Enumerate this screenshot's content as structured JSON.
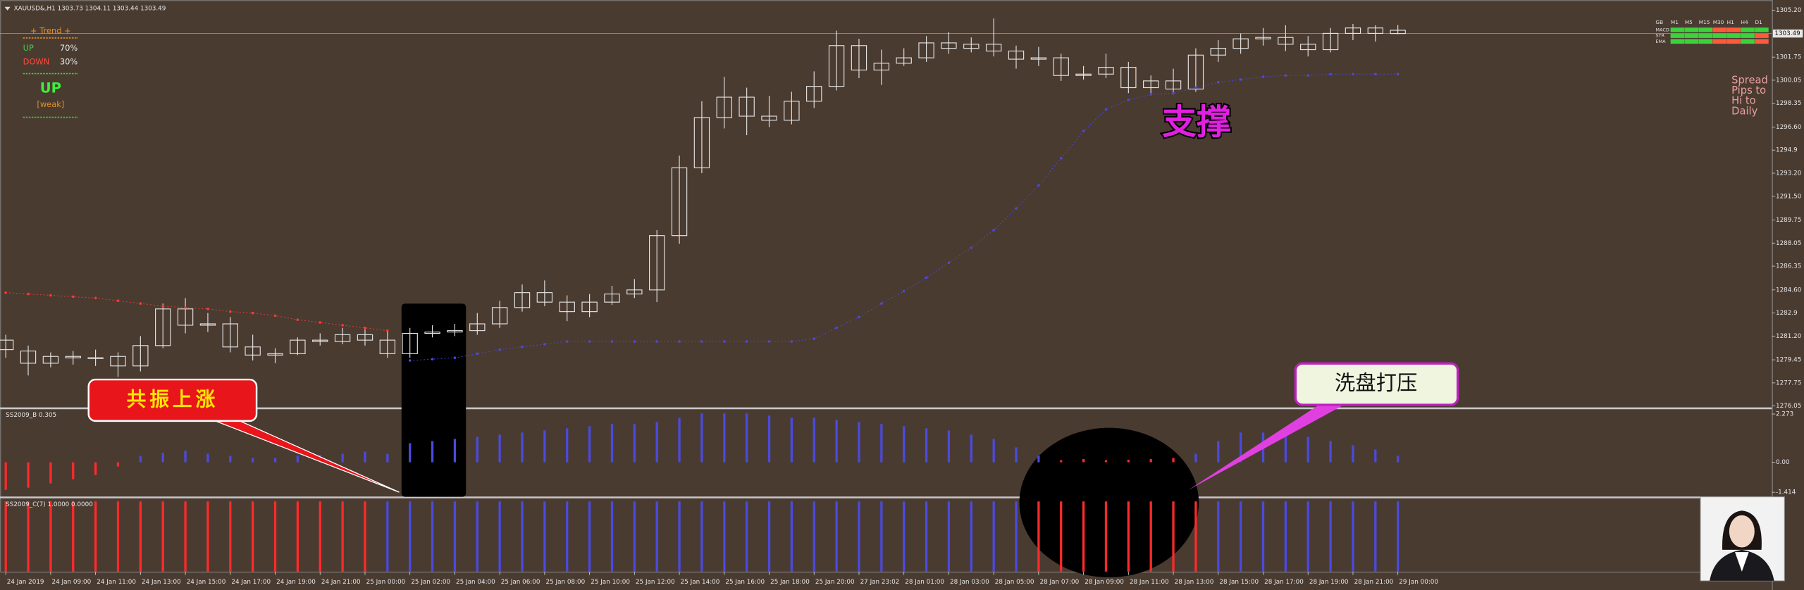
{
  "chart_data": [
    {
      "type": "candlestick",
      "title": "XAUUSD&,H1 1303.73 1304.11 1303.44 1303.49",
      "categories": [
        "24 Jan 2019",
        null,
        "24 Jan 09:00",
        null,
        "24 Jan 11:00",
        null,
        "24 Jan 13:00",
        null,
        "24 Jan 15:00",
        null,
        "24 Jan 17:00",
        null,
        "24 Jan 19:00",
        null,
        "24 Jan 21:00",
        null,
        "25 Jan 00:00",
        null,
        "25 Jan 02:00",
        null,
        "25 Jan 04:00",
        null,
        "25 Jan 06:00",
        null,
        "25 Jan 08:00",
        null,
        "25 Jan 10:00",
        null,
        "25 Jan 12:00",
        null,
        "25 Jan 14:00",
        null,
        "25 Jan 16:00",
        null,
        "25 Jan 18:00",
        null,
        "25 Jan 20:00",
        null,
        "27 Jan 23:02",
        null,
        "28 Jan 01:00",
        null,
        "28 Jan 03:00",
        null,
        "28 Jan 05:00",
        null,
        "28 Jan 07:00",
        null,
        "28 Jan 09:00",
        null,
        "28 Jan 11:00",
        null,
        "28 Jan 13:00",
        null,
        "28 Jan 15:00",
        null,
        "28 Jan 17:00",
        null,
        "28 Jan 19:00",
        null,
        "28 Jan 21:00",
        null,
        "29 Jan 00:00"
      ],
      "open": [
        1280.9,
        1280.1,
        1279.2,
        1279.7,
        1279.6,
        1279.7,
        1279.0,
        1280.5,
        1283.2,
        1282.0,
        1282.1,
        1280.4,
        1279.8,
        1279.9,
        1280.9,
        1280.8,
        1281.3,
        1280.9,
        1279.9,
        1281.4,
        1281.5,
        1281.6,
        1282.1,
        1283.3,
        1284.4,
        1283.7,
        1283.0,
        1283.7,
        1284.3,
        1284.6,
        1288.6,
        1293.6,
        1297.3,
        1298.8,
        1297.4,
        1297.1,
        1298.5,
        1299.6,
        1302.6,
        1300.8,
        1301.3,
        1301.7,
        1302.8,
        1302.4,
        1302.7,
        1302.2,
        1301.6,
        1301.7,
        1300.4,
        1300.5,
        1301.0,
        1299.5,
        1300.0,
        1299.4,
        1301.9,
        1302.4,
        1303.1,
        1303.2,
        1302.7,
        1302.3,
        1303.5,
        1303.9,
        1303.73
      ],
      "high": [
        1281.3,
        1280.5,
        1280.0,
        1280.1,
        1280.2,
        1280.0,
        1281.2,
        1283.6,
        1284.0,
        1282.9,
        1282.6,
        1281.3,
        1280.3,
        1281.1,
        1281.4,
        1281.8,
        1281.7,
        1281.6,
        1281.8,
        1282.0,
        1282.1,
        1282.9,
        1283.8,
        1285.0,
        1285.3,
        1284.2,
        1284.3,
        1284.9,
        1285.4,
        1289.0,
        1294.5,
        1298.5,
        1300.3,
        1299.5,
        1298.9,
        1299.2,
        1300.7,
        1303.7,
        1303.1,
        1302.3,
        1302.4,
        1303.3,
        1303.6,
        1303.2,
        1304.6,
        1302.6,
        1302.5,
        1302.0,
        1301.1,
        1302.0,
        1301.4,
        1300.4,
        1300.9,
        1302.4,
        1303.0,
        1303.5,
        1303.9,
        1304.1,
        1303.3,
        1303.9,
        1304.2,
        1304.1,
        1304.11
      ],
      "low": [
        1279.6,
        1278.3,
        1278.9,
        1279.1,
        1279.0,
        1278.2,
        1278.6,
        1280.3,
        1281.4,
        1281.5,
        1280.0,
        1279.4,
        1279.2,
        1279.8,
        1280.5,
        1280.6,
        1280.5,
        1279.6,
        1279.6,
        1281.1,
        1281.2,
        1281.3,
        1281.8,
        1283.0,
        1283.4,
        1282.3,
        1282.6,
        1283.5,
        1284.0,
        1283.7,
        1288.0,
        1293.2,
        1296.5,
        1296.0,
        1296.6,
        1296.8,
        1298.0,
        1299.3,
        1300.2,
        1299.7,
        1301.1,
        1301.4,
        1302.0,
        1302.1,
        1301.8,
        1300.9,
        1301.1,
        1300.0,
        1300.1,
        1300.2,
        1299.1,
        1299.1,
        1299.0,
        1299.2,
        1301.4,
        1302.0,
        1302.6,
        1302.2,
        1301.8,
        1302.1,
        1303.0,
        1302.9,
        1303.44
      ],
      "close": [
        1280.2,
        1279.2,
        1279.7,
        1279.6,
        1279.6,
        1279.0,
        1280.5,
        1283.2,
        1282.0,
        1282.1,
        1280.4,
        1279.8,
        1279.9,
        1280.9,
        1280.8,
        1281.3,
        1280.9,
        1279.9,
        1281.4,
        1281.5,
        1281.6,
        1282.1,
        1283.3,
        1284.4,
        1283.7,
        1283.0,
        1283.7,
        1284.3,
        1284.6,
        1288.6,
        1293.6,
        1297.3,
        1298.8,
        1297.4,
        1297.1,
        1298.5,
        1299.6,
        1302.6,
        1300.8,
        1301.3,
        1301.7,
        1302.8,
        1302.4,
        1302.7,
        1302.2,
        1301.6,
        1301.7,
        1300.4,
        1300.5,
        1301.0,
        1299.5,
        1300.0,
        1299.4,
        1301.9,
        1302.4,
        1303.1,
        1303.2,
        1302.7,
        1302.3,
        1303.5,
        1303.9,
        1303.5,
        1303.49
      ],
      "candle_color": "#e4e4e4",
      "series": [
        {
          "color": "#ff3b30",
          "values": [
            1284.4,
            1284.3,
            1284.2,
            1284.1,
            1284.0,
            1283.8,
            1283.6,
            1283.4,
            1283.3,
            1283.2,
            1283.0,
            1282.9,
            1282.7,
            1282.4,
            1282.2,
            1282.0,
            1281.8,
            1281.6,
            null,
            null,
            null,
            null,
            null,
            null,
            null,
            null,
            null,
            null,
            null,
            null,
            null,
            null,
            null,
            null,
            null,
            null,
            null,
            null,
            null,
            null,
            null,
            null,
            null,
            null,
            null,
            null,
            null,
            null,
            null,
            null,
            null,
            null,
            null,
            null,
            null,
            null,
            null,
            null,
            null,
            null,
            null,
            null,
            null
          ]
        },
        {
          "color": "#4a4ae0",
          "values": [
            null,
            null,
            null,
            null,
            null,
            null,
            null,
            null,
            null,
            null,
            null,
            null,
            null,
            null,
            null,
            null,
            null,
            null,
            1279.4,
            1279.5,
            1279.6,
            1279.9,
            1280.2,
            1280.4,
            1280.6,
            1280.8,
            1280.8,
            1280.8,
            1280.8,
            1280.8,
            1280.8,
            1280.8,
            1280.8,
            1280.8,
            1280.8,
            1280.8,
            1281.0,
            1281.8,
            1282.6,
            1283.6,
            1284.5,
            1285.5,
            1286.6,
            1287.7,
            1289.0,
            1290.6,
            1292.3,
            1294.3,
            1296.3,
            1297.9,
            1298.6,
            1299.0,
            1299.1,
            1299.5,
            1299.9,
            1300.1,
            1300.3,
            1300.4,
            1300.4,
            1300.5,
            1300.5,
            1300.5,
            1300.5
          ]
        }
      ],
      "ylim": [
        1275.88,
        1305.79
      ],
      "yticks": [
        {
          "value": 1276.05,
          "label": "1276.05"
        },
        1277.75,
        1279.45,
        {
          "value": 1281.2,
          "label": "1281.20"
        },
        1282.9,
        {
          "value": 1284.6,
          "label": "1284.60"
        },
        1286.35,
        1288.05,
        1289.75,
        {
          "value": 1291.5,
          "label": "1291.50"
        },
        {
          "value": 1293.2,
          "label": "1293.20"
        },
        1294.9,
        {
          "value": 1296.6,
          "label": "1296.60"
        },
        1298.35,
        1300.05,
        1301.75,
        {
          "value": 1305.2,
          "label": "1305.20"
        }
      ],
      "last_price": 1303.49,
      "annotations": [
        "共振上涨",
        "洗盘打压",
        "支撑"
      ]
    },
    {
      "type": "bar",
      "title": "SS2009_B 0.305",
      "series": [
        {
          "color": "#4a4ae0",
          "values": [
            null,
            null,
            null,
            null,
            null,
            null,
            0.3,
            0.45,
            0.55,
            0.4,
            0.3,
            0.2,
            0.2,
            0.3,
            0.35,
            0.4,
            0.5,
            0.4,
            0.9,
            1.0,
            1.1,
            1.2,
            1.3,
            1.4,
            1.5,
            1.6,
            1.7,
            1.8,
            1.8,
            1.9,
            2.1,
            2.3,
            2.3,
            2.3,
            2.2,
            2.1,
            2.1,
            2.0,
            1.9,
            1.8,
            1.7,
            1.6,
            1.5,
            1.3,
            1.1,
            0.7,
            0.3,
            null,
            null,
            null,
            null,
            null,
            null,
            0.4,
            1.0,
            1.4,
            1.4,
            1.3,
            1.2,
            1.0,
            0.8,
            0.6,
            0.305
          ]
        },
        {
          "color": "#ff2a2a",
          "values": [
            -1.3,
            -1.2,
            -1.0,
            -0.8,
            -0.6,
            -0.2,
            null,
            null,
            null,
            null,
            null,
            null,
            null,
            null,
            null,
            null,
            null,
            null,
            null,
            null,
            null,
            null,
            null,
            null,
            null,
            null,
            null,
            null,
            null,
            null,
            null,
            null,
            null,
            null,
            null,
            null,
            null,
            null,
            null,
            null,
            null,
            null,
            null,
            null,
            null,
            null,
            null,
            0.1,
            0.15,
            0.1,
            0.12,
            0.15,
            0.2,
            null,
            null,
            null,
            null,
            null,
            null,
            null,
            null,
            null,
            null
          ]
        }
      ],
      "ylim": [
        -1.63,
        2.49
      ],
      "yticks": [
        -1.414,
        {
          "value": 0,
          "label": "0.00"
        },
        2.273
      ]
    },
    {
      "type": "bar",
      "title": "SS2009_C(7) 1.0000 0.0000",
      "series": [
        {
          "color": "#4a4ae0",
          "values": [
            null,
            null,
            null,
            null,
            null,
            null,
            null,
            null,
            null,
            null,
            null,
            null,
            null,
            null,
            null,
            null,
            null,
            1,
            1,
            1,
            1,
            1,
            1,
            1,
            1,
            1,
            1,
            1,
            1,
            1,
            1,
            1,
            1,
            1,
            1,
            1,
            1,
            1,
            1,
            1,
            1,
            1,
            1,
            1,
            1,
            1,
            null,
            null,
            null,
            null,
            null,
            null,
            null,
            null,
            1,
            1,
            1,
            1,
            1,
            1,
            1,
            1,
            1
          ]
        },
        {
          "color": "#ff2a2a",
          "values": [
            1,
            1,
            1,
            1,
            1,
            1,
            1,
            1,
            1,
            1,
            1,
            1,
            1,
            1,
            1,
            1,
            1,
            null,
            null,
            null,
            null,
            null,
            null,
            null,
            null,
            null,
            null,
            null,
            null,
            null,
            null,
            null,
            null,
            null,
            null,
            null,
            null,
            null,
            null,
            null,
            null,
            null,
            null,
            null,
            null,
            null,
            1,
            1,
            1,
            1,
            1,
            1,
            1,
            1,
            null,
            null,
            null,
            null,
            null,
            null,
            null,
            null,
            null
          ]
        }
      ],
      "ylim": [
        0,
        1
      ]
    }
  ],
  "trend_panel": {
    "title": "+ Trend +",
    "up_label": "UP",
    "up_value": "70%",
    "down_label": "DOWN",
    "down_value": "30%",
    "signal": "UP",
    "strength": "[weak]"
  },
  "signal_grid": {
    "columns": [
      "GB",
      "M1",
      "M5",
      "M15",
      "M30",
      "H1",
      "H4",
      "D1"
    ],
    "rows": [
      {
        "label": "MACD",
        "cells": [
          "#3cd23c",
          "#3cd23c",
          "#3cd23c",
          "#ff5a3c",
          "#ff5a3c",
          "#3cd23c",
          "#3cd23c"
        ]
      },
      {
        "label": "STR",
        "cells": [
          "#3cd23c",
          "#3cd23c",
          "#3cd23c",
          "#3cd23c",
          "#3cd23c",
          "#3cd23c",
          "#ff5a3c"
        ]
      },
      {
        "label": "EMA",
        "cells": [
          "#3cd23c",
          "#3cd23c",
          "#3cd23c",
          "#ff5a3c",
          "#ff5a3c",
          "#3cd23c",
          "#ff5a3c"
        ]
      }
    ]
  },
  "info_panel": [
    "Spread",
    "Pips to",
    "Hi to",
    "Daily"
  ]
}
